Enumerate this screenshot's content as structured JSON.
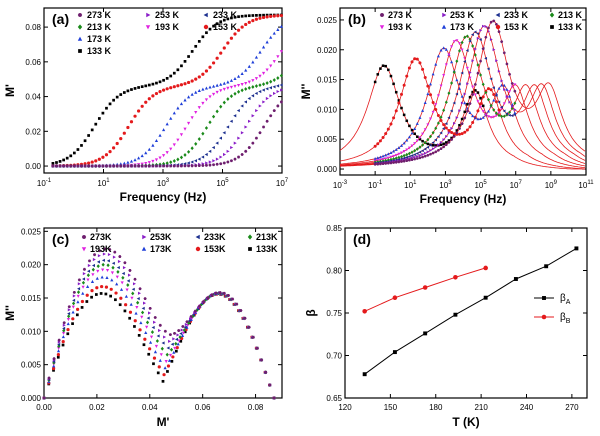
{
  "chart_data": [
    {
      "panel": "(a)",
      "type": "scatter",
      "xlabel": "Frequency (Hz)",
      "ylabel": "M'",
      "xscale": "log",
      "xlim": [
        0.1,
        10000000
      ],
      "ylim": [
        -0.004,
        0.091
      ],
      "x_ticks": [
        0.1,
        10,
        1000,
        100000,
        10000000
      ],
      "x_tick_labels": [
        "10-1",
        "101",
        "103",
        "105",
        "107"
      ],
      "y_ticks": [
        0.0,
        0.02,
        0.04,
        0.06,
        0.08
      ],
      "y_tick_labels": [
        "0.00",
        "0.02",
        "0.04",
        "0.06",
        "0.08"
      ],
      "legend": [
        "273 K",
        "253 K",
        "233 K",
        "213 K",
        "193 K",
        "153 K",
        "173 K",
        "133 K"
      ],
      "legend_position": "top-left",
      "series": [
        {
          "name": "133 K",
          "color": "#000000",
          "marker": "square",
          "step1_logf": 0.7,
          "step2_logf": 4.0,
          "plateau": 0.046,
          "top": 0.087
        },
        {
          "name": "153 K",
          "color": "#e41a1c",
          "marker": "circle",
          "step1_logf": 1.85,
          "step2_logf": 5.0,
          "plateau": 0.046,
          "top": 0.087
        },
        {
          "name": "173 K",
          "color": "#1f3fd8",
          "marker": "triangle-up",
          "step1_logf": 3.1,
          "step2_logf": 6.3,
          "plateau": 0.046,
          "top": 0.087
        },
        {
          "name": "193 K",
          "color": "#e022e0",
          "marker": "triangle-down",
          "step1_logf": 3.8,
          "step2_logf": 7.0,
          "plateau": 0.046,
          "top": 0.087
        },
        {
          "name": "213 K",
          "color": "#1a8a1a",
          "marker": "diamond",
          "step1_logf": 4.5,
          "step2_logf": 7.7,
          "plateau": 0.046,
          "top": 0.087
        },
        {
          "name": "233 K",
          "color": "#1c2f8f",
          "marker": "triangle-left",
          "step1_logf": 5.2,
          "step2_logf": 8.4,
          "plateau": 0.046,
          "top": 0.087
        },
        {
          "name": "253 K",
          "color": "#8a1ec8",
          "marker": "triangle-right",
          "step1_logf": 5.8,
          "step2_logf": 9.0,
          "plateau": 0.046,
          "top": 0.087
        },
        {
          "name": "273 K",
          "color": "#6e1e6e",
          "marker": "hexagon",
          "step1_logf": 6.4,
          "step2_logf": 9.6,
          "plateau": 0.046,
          "top": 0.087
        }
      ]
    },
    {
      "panel": "(b)",
      "type": "scatter",
      "xlabel": "Frequency (Hz)",
      "ylabel": "M''",
      "xscale": "log",
      "xlim": [
        0.001,
        100000000000
      ],
      "ylim": [
        -0.001,
        0.027
      ],
      "x_ticks": [
        0.001,
        0.1,
        10,
        1000,
        100000,
        10000000,
        1000000000,
        100000000000
      ],
      "x_tick_labels": [
        "10-3",
        "10-1",
        "101",
        "103",
        "105",
        "107",
        "109",
        "1011"
      ],
      "y_ticks": [
        0.0,
        0.005,
        0.01,
        0.015,
        0.02,
        0.025
      ],
      "y_tick_labels": [
        "0.000",
        "0.005",
        "0.010",
        "0.015",
        "0.020",
        "0.025"
      ],
      "legend": [
        "273 K",
        "253 K",
        "233 K",
        "213 K",
        "193 K",
        "173 K",
        "153 K",
        "133 K"
      ],
      "legend_position": "top",
      "fit_lines": "red solid",
      "series": [
        {
          "name": "133 K",
          "color": "#000000",
          "marker": "square",
          "peak1_logf": -0.5,
          "peak1_height": 0.017,
          "peak2_logf": 4.7,
          "peak2_height": 0.0155
        },
        {
          "name": "153 K",
          "color": "#e41a1c",
          "marker": "circle",
          "peak1_logf": 1.3,
          "peak1_height": 0.018,
          "peak2_logf": 5.5,
          "peak2_height": 0.0153
        },
        {
          "name": "173 K",
          "color": "#1f3fd8",
          "marker": "triangle-up",
          "peak1_logf": 2.9,
          "peak1_height": 0.0195,
          "peak2_logf": 6.3,
          "peak2_height": 0.0151
        },
        {
          "name": "193 K",
          "color": "#e022e0",
          "marker": "triangle-down",
          "peak1_logf": 3.6,
          "peak1_height": 0.0208,
          "peak2_logf": 7.0,
          "peak2_height": 0.015
        },
        {
          "name": "213 K",
          "color": "#1a8a1a",
          "marker": "diamond",
          "peak1_logf": 4.2,
          "peak1_height": 0.0215,
          "peak2_logf": 7.6,
          "peak2_height": 0.0149
        },
        {
          "name": "233 K",
          "color": "#1c2f8f",
          "marker": "triangle-left",
          "peak1_logf": 4.7,
          "peak1_height": 0.0222,
          "peak2_logf": 8.1,
          "peak2_height": 0.0148
        },
        {
          "name": "253 K",
          "color": "#8a1ec8",
          "marker": "triangle-right",
          "peak1_logf": 5.2,
          "peak1_height": 0.0232,
          "peak2_logf": 8.5,
          "peak2_height": 0.0147
        },
        {
          "name": "273 K",
          "color": "#6e1e6e",
          "marker": "hexagon",
          "peak1_logf": 5.7,
          "peak1_height": 0.024,
          "peak2_logf": 8.9,
          "peak2_height": 0.0146
        }
      ]
    },
    {
      "panel": "(c)",
      "type": "scatter",
      "xlabel": "M'",
      "ylabel": "M''",
      "xlim": [
        0.0,
        0.09
      ],
      "ylim": [
        0.0,
        0.0255
      ],
      "x_ticks": [
        0.0,
        0.02,
        0.04,
        0.06,
        0.08
      ],
      "x_tick_labels": [
        "0.00",
        "0.02",
        "0.04",
        "0.06",
        "0.08"
      ],
      "y_ticks": [
        0.0,
        0.005,
        0.01,
        0.015,
        0.02,
        0.025
      ],
      "y_tick_labels": [
        "0.000",
        "0.005",
        "0.010",
        "0.015",
        "0.020",
        "0.025"
      ],
      "legend": [
        "273K",
        "253K",
        "233K",
        "213K",
        "193K",
        "173K",
        "153K",
        "133K"
      ],
      "legend_position": "top",
      "series": [
        {
          "name": "133K",
          "color": "#000000",
          "marker": "square",
          "arc1_height": 0.0169,
          "arc_min": 0.0025
        },
        {
          "name": "153K",
          "color": "#e41a1c",
          "marker": "circle",
          "arc1_height": 0.018,
          "arc_min": 0.0035
        },
        {
          "name": "173K",
          "color": "#1f3fd8",
          "marker": "triangle-up",
          "arc1_height": 0.0195,
          "arc_min": 0.0045
        },
        {
          "name": "193K",
          "color": "#e022e0",
          "marker": "triangle-down",
          "arc1_height": 0.0207,
          "arc_min": 0.0055
        },
        {
          "name": "213K",
          "color": "#1a8a1a",
          "marker": "diamond",
          "arc1_height": 0.0215,
          "arc_min": 0.0065
        },
        {
          "name": "233K",
          "color": "#1c2f8f",
          "marker": "triangle-left",
          "arc1_height": 0.0222,
          "arc_min": 0.0075
        },
        {
          "name": "253K",
          "color": "#8a1ec8",
          "marker": "triangle-right",
          "arc1_height": 0.0232,
          "arc_min": 0.0085
        },
        {
          "name": "273K",
          "color": "#6e1e6e",
          "marker": "hexagon",
          "arc1_height": 0.024,
          "arc_min": 0.0095
        }
      ]
    },
    {
      "panel": "(d)",
      "type": "line",
      "xlabel": "T (K)",
      "ylabel": "β",
      "xlim": [
        120,
        280
      ],
      "ylim": [
        0.65,
        0.85
      ],
      "x_ticks": [
        120,
        150,
        180,
        210,
        240,
        270
      ],
      "x_tick_labels": [
        "120",
        "150",
        "180",
        "210",
        "240",
        "270"
      ],
      "y_ticks": [
        0.65,
        0.7,
        0.75,
        0.8,
        0.85
      ],
      "y_tick_labels": [
        "0.65",
        "0.70",
        "0.75",
        "0.80",
        "0.85"
      ],
      "legend": [
        "βA",
        "βB"
      ],
      "legend_position": "right",
      "series": [
        {
          "name": "βA",
          "color": "#000000",
          "marker": "square",
          "x": [
            133,
            153,
            173,
            193,
            213,
            233,
            253,
            273
          ],
          "y": [
            0.678,
            0.704,
            0.726,
            0.748,
            0.768,
            0.79,
            0.805,
            0.826
          ]
        },
        {
          "name": "βB",
          "color": "#e41a1c",
          "marker": "circle",
          "x": [
            133,
            153,
            173,
            193,
            213
          ],
          "y": [
            0.752,
            0.768,
            0.78,
            0.792,
            0.803
          ]
        }
      ]
    }
  ]
}
